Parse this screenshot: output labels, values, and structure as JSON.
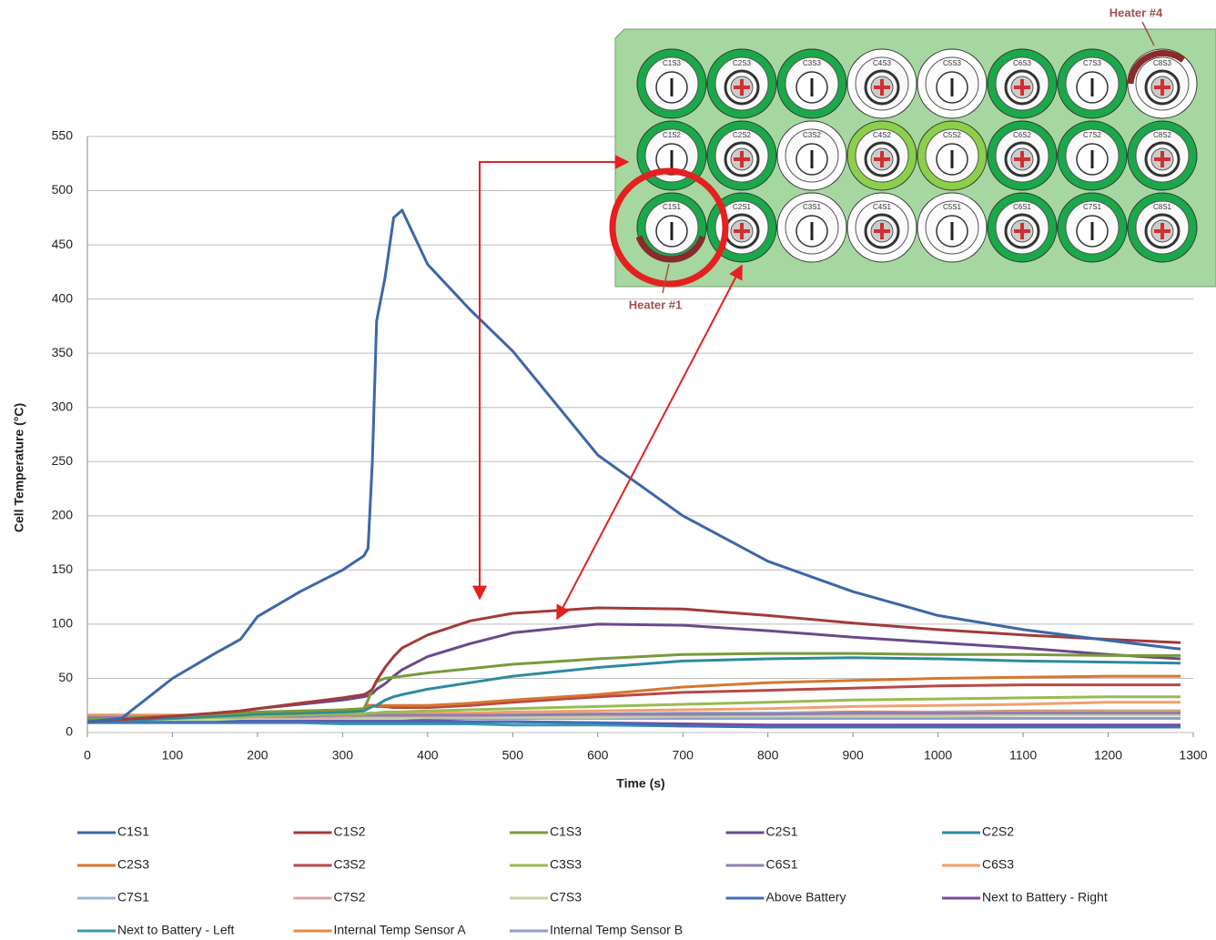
{
  "chart_data": {
    "type": "line",
    "x_label": "Time (s)",
    "y_label": "Cell Temperature (°C)",
    "x": [
      0,
      40,
      100,
      150,
      180,
      200,
      250,
      300,
      325,
      330,
      335,
      340,
      350,
      360,
      370,
      400,
      450,
      500,
      600,
      700,
      800,
      900,
      1000,
      1100,
      1200,
      1285
    ],
    "xlim": [
      0,
      1300
    ],
    "xticks": [
      0,
      100,
      200,
      300,
      400,
      500,
      600,
      700,
      800,
      900,
      1000,
      1100,
      1200,
      1300
    ],
    "ylim": [
      0,
      550
    ],
    "yticks": [
      0,
      50,
      100,
      150,
      200,
      250,
      300,
      350,
      400,
      450,
      500,
      550
    ],
    "grid": true,
    "legend": "bottom",
    "series": [
      {
        "name": "C1S1",
        "color": "#3c67a8",
        "values": [
          10,
          13,
          50,
          73,
          86,
          107,
          130,
          150,
          163,
          170,
          250,
          380,
          420,
          475,
          482,
          432,
          390,
          352,
          256,
          200,
          158,
          130,
          108,
          95,
          85,
          77
        ]
      },
      {
        "name": "C1S2",
        "color": "#a33a3a",
        "values": [
          10,
          12,
          15,
          18,
          20,
          22,
          27,
          32,
          35,
          37,
          40,
          48,
          60,
          70,
          78,
          90,
          103,
          110,
          115,
          114,
          108,
          101,
          95,
          90,
          86,
          83
        ]
      },
      {
        "name": "C1S3",
        "color": "#7a9a3b",
        "values": [
          12,
          13,
          15,
          17,
          18,
          19,
          20,
          21,
          22,
          30,
          40,
          47,
          50,
          51,
          52,
          55,
          59,
          63,
          68,
          72,
          73,
          73,
          72,
          72,
          71,
          71
        ]
      },
      {
        "name": "C2S1",
        "color": "#6a4a8a",
        "values": [
          10,
          12,
          15,
          18,
          20,
          22,
          26,
          30,
          33,
          34,
          36,
          40,
          45,
          52,
          58,
          70,
          82,
          92,
          100,
          99,
          94,
          88,
          83,
          78,
          72,
          68
        ]
      },
      {
        "name": "C2S2",
        "color": "#2e8a9e",
        "values": [
          10,
          11,
          13,
          15,
          16,
          17,
          18,
          19,
          20,
          22,
          24,
          25,
          30,
          33,
          35,
          40,
          46,
          52,
          60,
          66,
          68,
          69,
          68,
          66,
          65,
          64
        ]
      },
      {
        "name": "C2S3",
        "color": "#d6772e",
        "values": [
          12,
          13,
          14,
          15,
          16,
          17,
          18,
          19,
          20,
          25,
          25,
          25,
          25,
          25,
          25,
          25,
          27,
          30,
          35,
          42,
          46,
          48,
          50,
          51,
          52,
          52
        ]
      },
      {
        "name": "C3S2",
        "color": "#b84848",
        "values": [
          12,
          13,
          14,
          15,
          16,
          17,
          18,
          19,
          20,
          25,
          25,
          24,
          24,
          23,
          23,
          23,
          25,
          28,
          33,
          37,
          39,
          41,
          43,
          44,
          44,
          44
        ]
      },
      {
        "name": "C3S3",
        "color": "#98bb52",
        "values": [
          12,
          12,
          13,
          14,
          14,
          15,
          16,
          17,
          17,
          18,
          18,
          18,
          19,
          19,
          19,
          20,
          21,
          22,
          24,
          26,
          28,
          30,
          31,
          32,
          33,
          33
        ]
      },
      {
        "name": "C6S1",
        "color": "#8f7fb0",
        "values": [
          14,
          14,
          15,
          15,
          15,
          15,
          15,
          16,
          16,
          16,
          16,
          16,
          16,
          16,
          16,
          16,
          16,
          16,
          17,
          17,
          17,
          18,
          18,
          18,
          18,
          18
        ]
      },
      {
        "name": "C6S3",
        "color": "#f0a070",
        "values": [
          15,
          15,
          15,
          16,
          16,
          16,
          16,
          17,
          17,
          17,
          17,
          17,
          17,
          17,
          17,
          18,
          18,
          19,
          20,
          21,
          22,
          24,
          25,
          26,
          28,
          28
        ]
      },
      {
        "name": "C7S1",
        "color": "#9bb5d8",
        "values": [
          15,
          15,
          15,
          15,
          16,
          16,
          16,
          16,
          16,
          16,
          16,
          16,
          16,
          16,
          16,
          17,
          17,
          17,
          17,
          18,
          18,
          18,
          19,
          19,
          19,
          19
        ]
      },
      {
        "name": "C7S2",
        "color": "#d9a4a4",
        "values": [
          13,
          13,
          13,
          14,
          14,
          14,
          14,
          14,
          15,
          15,
          15,
          15,
          15,
          15,
          15,
          15,
          15,
          16,
          16,
          16,
          17,
          17,
          17,
          18,
          18,
          18
        ]
      },
      {
        "name": "C7S3",
        "color": "#c4d6a4",
        "values": [
          12,
          12,
          12,
          12,
          13,
          13,
          13,
          13,
          13,
          13,
          13,
          13,
          13,
          13,
          13,
          14,
          14,
          14,
          14,
          15,
          15,
          15,
          15,
          16,
          16,
          16
        ]
      },
      {
        "name": "Above Battery",
        "color": "#4070b8",
        "values": [
          10,
          10,
          10,
          10,
          10,
          10,
          10,
          10,
          10,
          10,
          10,
          10,
          10,
          10,
          10,
          10,
          10,
          10,
          9,
          6,
          5,
          5,
          5,
          5,
          5,
          5
        ]
      },
      {
        "name": "Next to Battery - Right",
        "color": "#7a4aa0",
        "values": [
          12,
          12,
          12,
          12,
          12,
          12,
          12,
          11,
          11,
          11,
          11,
          11,
          11,
          11,
          11,
          11,
          10,
          10,
          9,
          8,
          7,
          7,
          7,
          7,
          7,
          7
        ]
      },
      {
        "name": "Next to Battery - Left",
        "color": "#3a9ab0",
        "values": [
          9,
          9,
          9,
          9,
          9,
          9,
          9,
          8,
          8,
          8,
          8,
          8,
          8,
          8,
          8,
          8,
          8,
          7,
          7,
          6,
          6,
          5,
          5,
          5,
          5,
          5
        ]
      },
      {
        "name": "Internal Temp Sensor A",
        "color": "#e8883a",
        "values": [
          16,
          16,
          16,
          16,
          16,
          16,
          16,
          16,
          16,
          16,
          16,
          16,
          16,
          16,
          16,
          16,
          17,
          17,
          17,
          18,
          18,
          19,
          19,
          20,
          20,
          20
        ]
      },
      {
        "name": "Internal Temp Sensor B",
        "color": "#8aa0d0",
        "values": [
          13,
          13,
          13,
          13,
          13,
          13,
          13,
          13,
          13,
          13,
          13,
          13,
          13,
          13,
          13,
          13,
          13,
          13,
          13,
          13,
          13,
          13,
          13,
          13,
          13,
          13
        ]
      }
    ]
  },
  "inset": {
    "heater_top": "Heater #4",
    "heater_bottom": "Heater #1",
    "rows": [
      [
        {
          "label": "C1S3",
          "ring": "#1aa84a"
        },
        {
          "label": "C2S3",
          "ring": "#1aa84a"
        },
        {
          "label": "C3S3",
          "ring": "#1aa84a"
        },
        {
          "label": "C4S3",
          "ring": "#ffffff"
        },
        {
          "label": "C5S3",
          "ring": "#ffffff"
        },
        {
          "label": "C6S3",
          "ring": "#1aa84a"
        },
        {
          "label": "C7S3",
          "ring": "#1aa84a"
        },
        {
          "label": "C8S3",
          "ring": "#ffffff"
        }
      ],
      [
        {
          "label": "C1S2",
          "ring": "#1aa84a"
        },
        {
          "label": "C2S2",
          "ring": "#1aa84a"
        },
        {
          "label": "C3S2",
          "ring": "#ffffff"
        },
        {
          "label": "C4S2",
          "ring": "#8ccf4a"
        },
        {
          "label": "C5S2",
          "ring": "#8ccf4a"
        },
        {
          "label": "C6S2",
          "ring": "#1aa84a"
        },
        {
          "label": "C7S2",
          "ring": "#1aa84a"
        },
        {
          "label": "C8S2",
          "ring": "#1aa84a"
        }
      ],
      [
        {
          "label": "C1S1",
          "ring": "#1aa84a"
        },
        {
          "label": "C2S1",
          "ring": "#1aa84a"
        },
        {
          "label": "C3S1",
          "ring": "#ffffff"
        },
        {
          "label": "C4S1",
          "ring": "#ffffff"
        },
        {
          "label": "C5S1",
          "ring": "#ffffff"
        },
        {
          "label": "C6S1",
          "ring": "#1aa84a"
        },
        {
          "label": "C7S1",
          "ring": "#1aa84a"
        },
        {
          "label": "C8S1",
          "ring": "#1aa84a"
        }
      ]
    ]
  }
}
